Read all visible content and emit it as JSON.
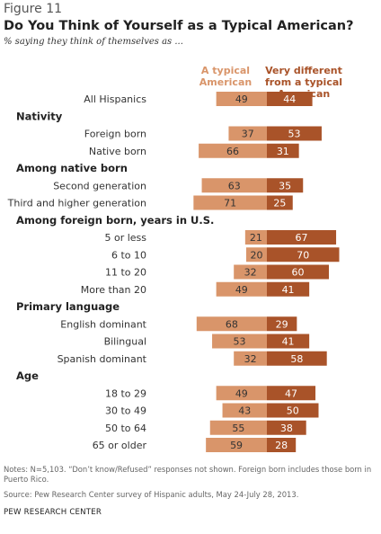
{
  "figure_label": "Figure 11",
  "notes": "Notes: N=5,103. “Don’t know/Refused” responses not shown. Foreign born includes those born in Puerto Rico.",
  "source": "Source: Pew Research Center survey of Hispanic adults, May 24-July 28, 2013.",
  "credit": "PEW RESEARCH CENTER",
  "colors": {
    "typical": "#D9956A",
    "different": "#A95329",
    "label_typical": "#D9956A",
    "label_different": "#A95329",
    "heading": "#222222",
    "row_label": "#333333"
  },
  "chart_data": {
    "type": "bar",
    "orientation": "horizontal",
    "layout": "diverging",
    "title": "Do You Think of Yourself as a Typical American?",
    "subtitle": "% saying they think of themselves as ...",
    "series_names": [
      "A typical American",
      "Very different from a typical American"
    ],
    "legend_placement": "top",
    "grid": false,
    "rows": [
      {
        "kind": "row",
        "label": "All Hispanics",
        "typical": 49,
        "different": 44
      },
      {
        "kind": "heading",
        "label": "Nativity"
      },
      {
        "kind": "row",
        "label": "Foreign born",
        "typical": 37,
        "different": 53
      },
      {
        "kind": "row",
        "label": "Native born",
        "typical": 66,
        "different": 31
      },
      {
        "kind": "heading",
        "label": "Among native born"
      },
      {
        "kind": "row",
        "label": "Second generation",
        "typical": 63,
        "different": 35
      },
      {
        "kind": "row",
        "label": "Third and higher generation",
        "typical": 71,
        "different": 25
      },
      {
        "kind": "heading",
        "label": "Among foreign born, years in U.S."
      },
      {
        "kind": "row",
        "label": "5 or less",
        "typical": 21,
        "different": 67
      },
      {
        "kind": "row",
        "label": "6 to 10",
        "typical": 20,
        "different": 70
      },
      {
        "kind": "row",
        "label": "11 to 20",
        "typical": 32,
        "different": 60
      },
      {
        "kind": "row",
        "label": "More than 20",
        "typical": 49,
        "different": 41
      },
      {
        "kind": "heading",
        "label": "Primary language"
      },
      {
        "kind": "row",
        "label": "English dominant",
        "typical": 68,
        "different": 29
      },
      {
        "kind": "row",
        "label": "Bilingual",
        "typical": 53,
        "different": 41
      },
      {
        "kind": "row",
        "label": "Spanish dominant",
        "typical": 32,
        "different": 58
      },
      {
        "kind": "heading",
        "label": "Age"
      },
      {
        "kind": "row",
        "label": "18 to 29",
        "typical": 49,
        "different": 47
      },
      {
        "kind": "row",
        "label": "30 to 49",
        "typical": 43,
        "different": 50
      },
      {
        "kind": "row",
        "label": "50 to 64",
        "typical": 55,
        "different": 38
      },
      {
        "kind": "row",
        "label": "65 or older",
        "typical": 59,
        "different": 28
      }
    ]
  }
}
